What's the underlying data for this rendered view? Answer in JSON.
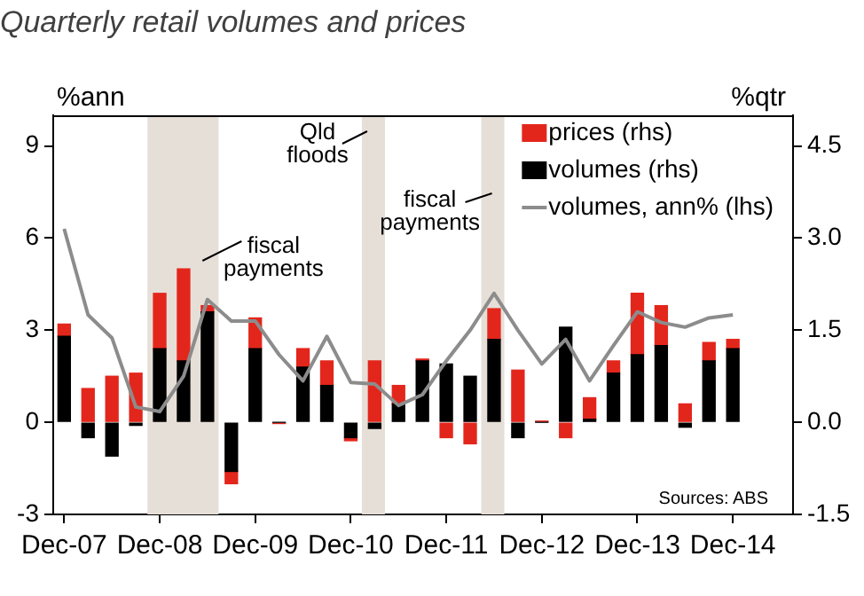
{
  "chart_data": {
    "type": "bar",
    "title": "Quarterly retail volumes and prices",
    "ylabel": "%ann",
    "y2label": "%qtr",
    "x": [
      "2007-12",
      "2008-03",
      "2008-06",
      "2008-09",
      "2008-12",
      "2009-03",
      "2009-06",
      "2009-09",
      "2009-12",
      "2010-03",
      "2010-06",
      "2010-09",
      "2010-12",
      "2011-03",
      "2011-06",
      "2011-09",
      "2011-12",
      "2012-03",
      "2012-06",
      "2012-09",
      "2012-12",
      "2013-03",
      "2013-06",
      "2013-09",
      "2013-12",
      "2014-03",
      "2014-06",
      "2014-09",
      "2014-12"
    ],
    "series": [
      {
        "name": "volumes (rhs)",
        "axis": "y2",
        "color": "#000000",
        "values": [
          1.4,
          -0.25,
          -0.55,
          -0.05,
          1.2,
          1.0,
          1.8,
          -0.8,
          1.2,
          0,
          0.9,
          0.6,
          -0.25,
          -0.1,
          0.3,
          1.0,
          0.95,
          0.75,
          1.35,
          -0.25,
          0,
          1.55,
          0.05,
          0.8,
          1.1,
          1.25,
          -0.08,
          1.0,
          1.2
        ]
      },
      {
        "name": "prices (rhs)",
        "axis": "y2",
        "color": "#e3261c",
        "values": [
          0.2,
          0.55,
          0.75,
          0.8,
          0.9,
          1.5,
          0.1,
          -0.2,
          0.5,
          -0.02,
          0.3,
          0.4,
          -0.05,
          1.0,
          0.3,
          0.03,
          -0.25,
          -0.35,
          0.5,
          0.85,
          0.02,
          -0.25,
          0.35,
          0.2,
          1.0,
          0.65,
          0.3,
          0.3,
          0.15
        ]
      },
      {
        "name": "volumes, ann% (lhs)",
        "type": "line",
        "axis": "y",
        "color": "#8c8c8c",
        "values": [
          6.3,
          3.5,
          2.75,
          0.5,
          0.35,
          1.5,
          4.0,
          3.3,
          3.3,
          2.2,
          1.35,
          2.8,
          1.3,
          1.25,
          0.55,
          0.9,
          2.0,
          3.0,
          4.2,
          3.0,
          1.9,
          2.7,
          1.35,
          2.5,
          3.6,
          3.25,
          3.1,
          3.4,
          3.5
        ]
      }
    ],
    "stacked": true,
    "xlim": [
      "2007-10-20",
      "2015-07-18"
    ],
    "xticks": [
      {
        "value": "2007-12",
        "label": "Dec-07"
      },
      {
        "value": "2008-12",
        "label": "Dec-08"
      },
      {
        "value": "2009-12",
        "label": "Dec-09"
      },
      {
        "value": "2010-12",
        "label": "Dec-10"
      },
      {
        "value": "2011-12",
        "label": "Dec-11"
      },
      {
        "value": "2012-12",
        "label": "Dec-12"
      },
      {
        "value": "2013-12",
        "label": "Dec-13"
      },
      {
        "value": "2014-12",
        "label": "Dec-14"
      }
    ],
    "ylim": [
      -3,
      10
    ],
    "yticks": [
      -3,
      0,
      3,
      6,
      9
    ],
    "y2lim": [
      -1.5,
      5
    ],
    "y2ticks": [
      -1.5,
      {
        "value": 0,
        "label": "0.0"
      },
      1.5,
      {
        "value": 3,
        "label": "3.0"
      },
      4.5
    ],
    "bands": [
      {
        "axis": "x",
        "from": "2008-10-15",
        "to": "2009-07-13",
        "color": "#e6dfd8",
        "label": "fiscal\npayments"
      },
      {
        "axis": "x",
        "from": "2011-01-13",
        "to": "2011-04-10",
        "color": "#e6dfd8",
        "label": "Qld\nfloods"
      },
      {
        "axis": "x",
        "from": "2012-04-13",
        "to": "2012-07-10",
        "color": "#e6dfd8",
        "label": "fiscal\npayments"
      }
    ],
    "annotations": [
      "Sources: ABS"
    ],
    "grid": false,
    "legend": "top right"
  }
}
